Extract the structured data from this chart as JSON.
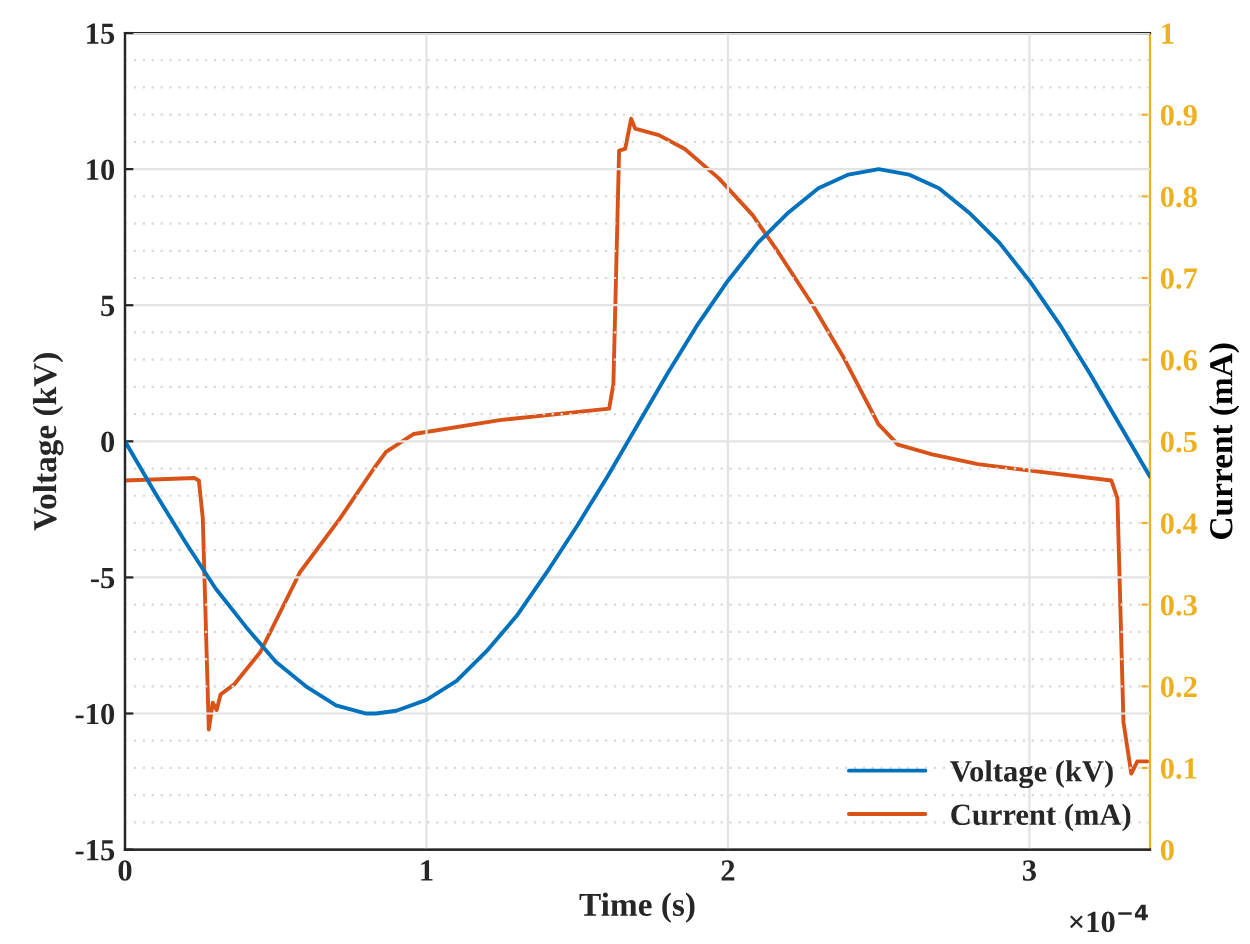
{
  "chart_data": {
    "type": "line",
    "xlabel": "Time (s)",
    "ylabel": "Voltage (kV)",
    "y2label": "Current (mA)",
    "xlim": [
      0,
      3.4
    ],
    "xticks": [
      0,
      1,
      2,
      3
    ],
    "ylim": [
      -15,
      15
    ],
    "yticks": [
      -15,
      -10,
      -5,
      0,
      5,
      10,
      15
    ],
    "y2lim": [
      0,
      1
    ],
    "y2ticks": [
      0,
      0.1,
      0.2,
      0.3,
      0.4,
      0.5,
      0.6,
      0.7,
      0.8,
      0.9,
      1
    ],
    "annotations": [
      "×10$^{−4}$"
    ],
    "grid": true,
    "legend": "bottom right",
    "marker": "none",
    "line_style": "solid",
    "series": [
      {
        "name": "Voltage (kV)",
        "color": "#0072bd",
        "x": [
          0,
          0.1,
          0.2,
          0.3,
          0.4,
          0.5,
          0.6,
          0.7,
          0.8,
          0.833,
          0.9,
          1.0,
          1.1,
          1.2,
          1.3,
          1.4,
          1.5,
          1.6,
          1.7,
          1.8,
          1.9,
          2.0,
          2.1,
          2.2,
          2.3,
          2.4,
          2.5,
          2.6,
          2.7,
          2.8,
          2.9,
          3.0,
          3.1,
          3.2,
          3.3,
          3.4
        ],
        "values": [
          0,
          -1.9,
          -3.7,
          -5.4,
          -6.8,
          -8.1,
          -9.0,
          -9.7,
          -10.0,
          -10.0,
          -9.9,
          -9.5,
          -8.8,
          -7.7,
          -6.4,
          -4.8,
          -3.1,
          -1.3,
          0.6,
          2.5,
          4.3,
          5.9,
          7.3,
          8.4,
          9.3,
          9.8,
          10.0,
          9.8,
          9.3,
          8.4,
          7.3,
          5.9,
          4.3,
          2.5,
          0.6,
          -1.3
        ]
      },
      {
        "name": "Current (mA)",
        "color": "#d95319",
        "axis": "y2",
        "x": [
          0,
          0.231,
          0.245,
          0.258,
          0.278,
          0.291,
          0.304,
          0.317,
          0.364,
          0.449,
          0.581,
          0.714,
          0.826,
          0.866,
          0.958,
          1.243,
          1.606,
          1.62,
          1.639,
          1.659,
          1.679,
          1.692,
          1.771,
          1.857,
          1.97,
          2.082,
          2.168,
          2.281,
          2.386,
          2.499,
          2.564,
          2.677,
          2.829,
          3.272,
          3.292,
          3.312,
          3.338,
          3.358,
          3.391
        ],
        "values": [
          0.452,
          0.455,
          0.452,
          0.406,
          0.147,
          0.18,
          0.171,
          0.19,
          0.203,
          0.242,
          0.34,
          0.406,
          0.467,
          0.487,
          0.509,
          0.526,
          0.54,
          0.57,
          0.856,
          0.858,
          0.895,
          0.883,
          0.875,
          0.858,
          0.822,
          0.777,
          0.731,
          0.667,
          0.601,
          0.521,
          0.496,
          0.484,
          0.472,
          0.452,
          0.43,
          0.156,
          0.093,
          0.108,
          0.108
        ]
      }
    ]
  }
}
